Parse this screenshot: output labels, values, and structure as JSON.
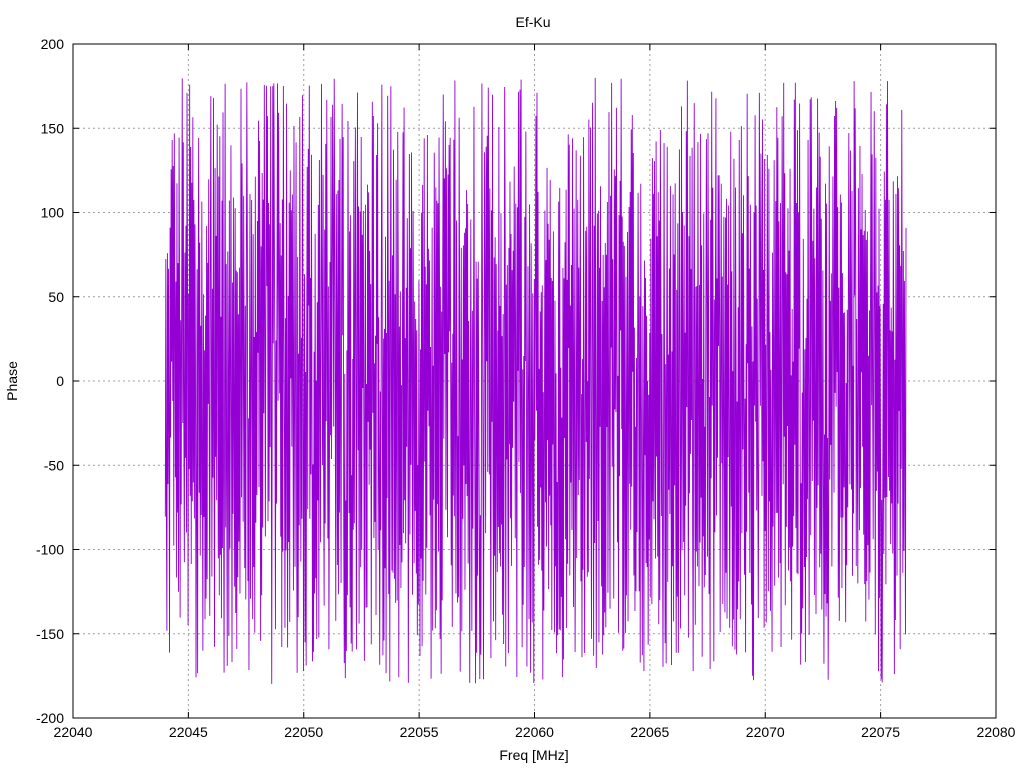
{
  "chart_data": {
    "type": "line",
    "title": "Ef-Ku",
    "xlabel": "Freq [MHz]",
    "ylabel": "Phase",
    "xlim": [
      22040,
      22080
    ],
    "ylim": [
      -200,
      200
    ],
    "xticks": [
      22040,
      22045,
      22050,
      22055,
      22060,
      22065,
      22070,
      22075,
      22080
    ],
    "yticks": [
      -200,
      -150,
      -100,
      -50,
      0,
      50,
      100,
      150,
      200
    ],
    "grid": true,
    "legend": "none",
    "series": [
      {
        "color": "#9400d3",
        "x_range": [
          22044,
          22076.1
        ],
        "points_count": 1400,
        "y_range": [
          -180,
          180
        ],
        "note_values": "dense phase trace wrapping between -180 and 180"
      }
    ]
  }
}
